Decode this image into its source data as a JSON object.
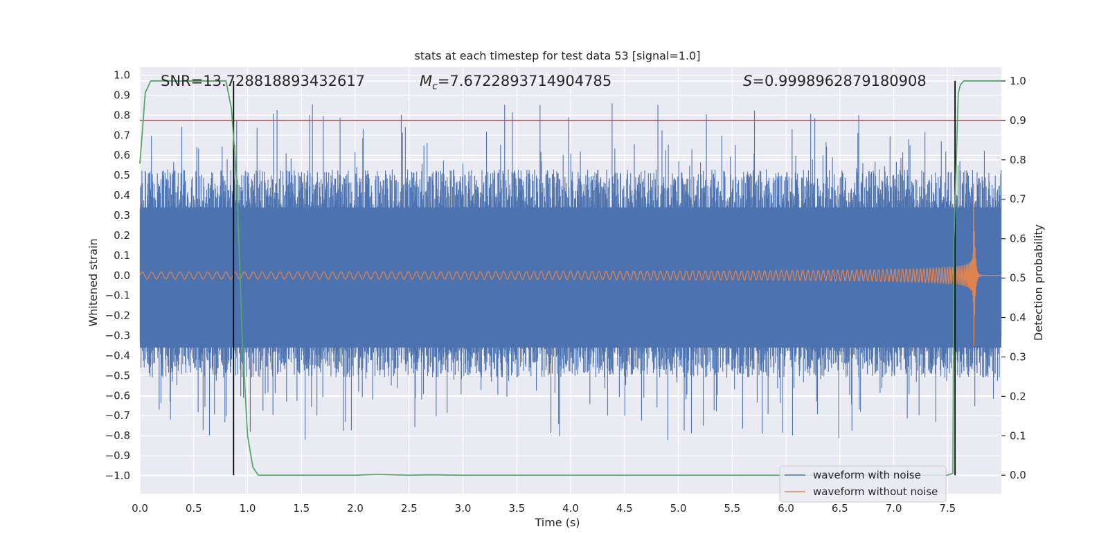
{
  "chart_data": {
    "type": "line",
    "title": "stats at each timestep for test data 53 [signal=1.0]",
    "xlabel": "Time (s)",
    "ylabel": "Whitened strain",
    "y2label": "Detection probability",
    "xlim": [
      0.0,
      8.0
    ],
    "ylim": [
      -1.09,
      1.04
    ],
    "y2lim": [
      -0.047,
      1.035
    ],
    "xticks": [
      "0.0",
      "0.5",
      "1.0",
      "1.5",
      "2.0",
      "2.5",
      "3.0",
      "3.5",
      "4.0",
      "4.5",
      "5.0",
      "5.5",
      "6.0",
      "6.5",
      "7.0",
      "7.5"
    ],
    "yticks": [
      "1.0",
      "0.9",
      "0.8",
      "0.7",
      "0.6",
      "0.5",
      "0.4",
      "0.3",
      "0.2",
      "0.1",
      "0.0",
      "-0.1",
      "-0.2",
      "-0.3",
      "-0.4",
      "-0.5",
      "-0.6",
      "-0.7",
      "-0.8",
      "-0.9",
      "-1.0"
    ],
    "y2ticks": [
      "1.0",
      "0.9",
      "0.8",
      "0.7",
      "0.6",
      "0.5",
      "0.4",
      "0.3",
      "0.2",
      "0.1",
      "0.0"
    ],
    "stats": {
      "snr_label": "SNR=13.728818893432617",
      "mc_symbol": "M",
      "mc_sub": "c",
      "mc_value": "=7.6722893714904785",
      "s_symbol": "S",
      "s_value": "=0.9998962879180908"
    },
    "threshold": 0.9,
    "threshold_color": "#c44e52",
    "vlines": [
      0.87,
      7.57
    ],
    "series": [
      {
        "name": "waveform with noise",
        "color": "#4c72b0",
        "axis": "left",
        "description": "whitened noisy strain, peaks roughly within -0.9 to 0.9"
      },
      {
        "name": "waveform without noise",
        "color": "#dd8452",
        "axis": "left",
        "description": "chirp signal, amplitude growing to merger near t=7.72 s"
      },
      {
        "name": "detection probability",
        "color": "#55a868",
        "axis": "right",
        "x": [
          0.0,
          0.05,
          0.1,
          0.2,
          0.4,
          0.6,
          0.8,
          0.85,
          0.9,
          0.95,
          1.0,
          1.05,
          1.1,
          1.15,
          1.5,
          2.0,
          2.2,
          2.5,
          2.7,
          3.0,
          4.0,
          5.0,
          6.0,
          7.0,
          7.5,
          7.55,
          7.56,
          7.6,
          7.62,
          7.65,
          7.7,
          8.0
        ],
        "y": [
          0.79,
          0.97,
          1.0,
          1.0,
          1.0,
          1.0,
          1.0,
          0.93,
          0.75,
          0.35,
          0.1,
          0.02,
          0.0,
          0.0,
          0.0,
          0.0,
          0.002,
          0.0,
          0.001,
          0.0,
          0.0,
          0.0,
          0.0,
          0.0,
          0.0,
          0.005,
          0.6,
          0.97,
          0.99,
          1.0,
          1.0,
          1.0
        ]
      }
    ],
    "legend": {
      "placement": "lower-right",
      "entries": [
        "waveform with noise",
        "waveform without noise"
      ]
    }
  }
}
